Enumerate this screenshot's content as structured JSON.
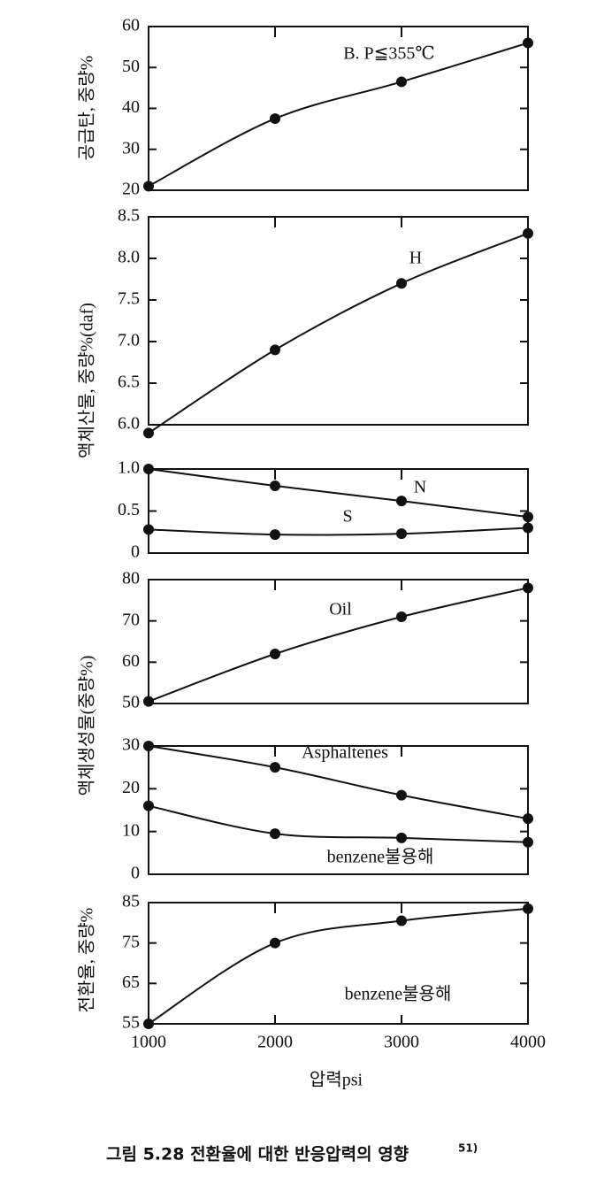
{
  "chart_data": [
    {
      "type": "line",
      "ylabel": "공급탄, 중량%",
      "x": [
        1000,
        2000,
        3000,
        4000
      ],
      "xlim": [
        1000,
        4000
      ],
      "ylim": [
        20,
        60
      ],
      "yticks": [
        20,
        30,
        40,
        50,
        60
      ],
      "series": [
        {
          "name": "B. P≦355℃",
          "color": "#111",
          "values": [
            21,
            37.5,
            46.5,
            56
          ]
        }
      ]
    },
    {
      "type": "line",
      "ylabel": "액체산물, 중량%(daf)",
      "x": [
        1000,
        2000,
        3000,
        4000
      ],
      "xlim": [
        1000,
        4000
      ],
      "ylim": [
        6,
        8.5
      ],
      "yticks": [
        {
          "value": 6,
          "label": "6.0"
        },
        6.5,
        {
          "value": 7,
          "label": "7.0"
        },
        7.5,
        {
          "value": 8,
          "label": "8.0"
        },
        8.5
      ],
      "series": [
        {
          "name": "H",
          "color": "#111",
          "values": [
            5.9,
            6.9,
            7.7,
            8.3
          ]
        }
      ]
    },
    {
      "type": "line",
      "x": [
        1000,
        2000,
        3000,
        4000
      ],
      "xlim": [
        1000,
        4000
      ],
      "ylim": [
        0,
        1
      ],
      "yticks": [
        0,
        0.5,
        {
          "value": 1,
          "label": "1.0"
        }
      ],
      "series": [
        {
          "name": "N",
          "color": "#111",
          "values": [
            1.0,
            0.8,
            0.62,
            0.43
          ]
        },
        {
          "name": "S",
          "color": "#111",
          "values": [
            0.28,
            0.22,
            0.23,
            0.3
          ]
        }
      ]
    },
    {
      "type": "line",
      "ylabel": "액체생성물(중량%)",
      "x": [
        1000,
        2000,
        3000,
        4000
      ],
      "xlim": [
        1000,
        4000
      ],
      "ylim": [
        50,
        80
      ],
      "yticks": [
        50,
        60,
        70,
        80
      ],
      "series": [
        {
          "name": "Oil",
          "color": "#111",
          "values": [
            50.5,
            62,
            71,
            78
          ]
        }
      ]
    },
    {
      "type": "line",
      "x": [
        1000,
        2000,
        3000,
        4000
      ],
      "xlim": [
        1000,
        4000
      ],
      "ylim": [
        0,
        30
      ],
      "yticks": [
        0,
        10,
        20,
        30
      ],
      "series": [
        {
          "name": "Asphaltenes",
          "color": "#111",
          "values": [
            30,
            25,
            18.5,
            13
          ]
        },
        {
          "name": "benzene불용해",
          "color": "#111",
          "values": [
            16,
            9.5,
            8.5,
            7.5
          ]
        }
      ]
    },
    {
      "type": "line",
      "ylabel": "전환율, 중량%",
      "xlabel": "압력psi",
      "x": [
        1000,
        2000,
        3000,
        4000
      ],
      "xlim": [
        1000,
        4000
      ],
      "xticks": [
        1000,
        2000,
        3000,
        4000
      ],
      "ylim": [
        55,
        85
      ],
      "yticks": [
        55,
        65,
        75,
        85
      ],
      "series": [
        {
          "name": "benzene불용해",
          "color": "#111",
          "values": [
            55,
            75,
            80.5,
            83.5
          ]
        }
      ]
    }
  ],
  "caption": {
    "text": "그림 5.28  전환율에 대한 반응압력의 영향",
    "ref": "51)"
  }
}
